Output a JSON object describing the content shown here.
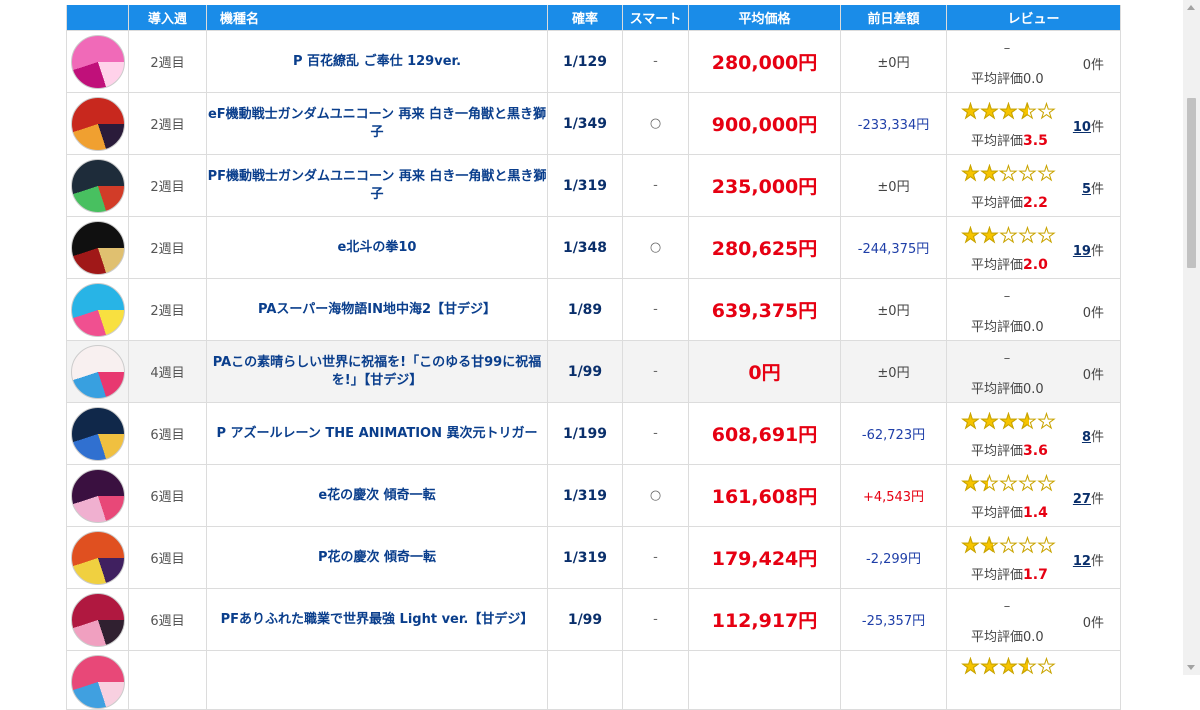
{
  "header": {
    "week": "導入週",
    "name": "機種名",
    "prob": "確率",
    "smart": "スマート",
    "avg_price": "平均価格",
    "diff": "前日差額",
    "review": "レビュー"
  },
  "unit_count": "件",
  "avg_label": "平均評価",
  "rows": [
    {
      "thumb": [
        "#f06ab8",
        "#ffd2ea",
        "#c0107a"
      ],
      "week": "2週目",
      "name": "P 百花繚乱 ご奉仕 129ver.",
      "prob": "1/129",
      "smart": "-",
      "price": "280,000円",
      "diff": "±0円",
      "diff_sign": "zero",
      "has_rating": false,
      "no_rating_mark": "–",
      "avg_value": "0.0",
      "count": "0",
      "stars": 0
    },
    {
      "thumb": [
        "#c8281e",
        "#2a1b3a",
        "#f0a030"
      ],
      "week": "2週目",
      "name": "eF機動戦士ガンダムユニコーン 再来 白き一角獣と黒き獅子",
      "prob": "1/349",
      "smart": "○",
      "price": "900,000円",
      "diff": "-233,334円",
      "diff_sign": "neg",
      "has_rating": true,
      "avg_value": "3.5",
      "count": "10",
      "stars": 3.5
    },
    {
      "thumb": [
        "#1e2c3a",
        "#d23c28",
        "#48c060"
      ],
      "week": "2週目",
      "name": "PF機動戦士ガンダムユニコーン 再来 白き一角獣と黒き獅子",
      "prob": "1/319",
      "smart": "-",
      "price": "235,000円",
      "diff": "±0円",
      "diff_sign": "zero",
      "has_rating": true,
      "avg_value": "2.2",
      "count": "5",
      "stars": 2.2
    },
    {
      "thumb": [
        "#101010",
        "#e0c070",
        "#a01818"
      ],
      "week": "2週目",
      "name": "e北斗の拳10",
      "prob": "1/348",
      "smart": "○",
      "price": "280,625円",
      "diff": "-244,375円",
      "diff_sign": "neg",
      "has_rating": true,
      "avg_value": "2.0",
      "count": "19",
      "stars": 2.0
    },
    {
      "thumb": [
        "#28b4e6",
        "#f8e040",
        "#f05090"
      ],
      "week": "2週目",
      "name": "PAスーパー海物語IN地中海2【甘デジ】",
      "prob": "1/89",
      "smart": "-",
      "price": "639,375円",
      "diff": "±0円",
      "diff_sign": "zero",
      "has_rating": false,
      "no_rating_mark": "–",
      "avg_value": "0.0",
      "count": "0",
      "stars": 0
    },
    {
      "thumb": [
        "#f8f0f0",
        "#e83870",
        "#38a0e0"
      ],
      "week": "4週目",
      "name": "PAこの素晴らしい世界に祝福を!「このゆる甘99に祝福を!」【甘デジ】",
      "prob": "1/99",
      "smart": "-",
      "price": "0円",
      "diff": "±0円",
      "diff_sign": "zero",
      "has_rating": false,
      "no_rating_mark": "–",
      "avg_value": "0.0",
      "count": "0",
      "stars": 0
    },
    {
      "thumb": [
        "#10284a",
        "#f0c040",
        "#3070d0"
      ],
      "week": "6週目",
      "name": "P アズールレーン THE ANIMATION 異次元トリガー",
      "prob": "1/199",
      "smart": "-",
      "price": "608,691円",
      "diff": "-62,723円",
      "diff_sign": "neg",
      "has_rating": true,
      "avg_value": "3.6",
      "count": "8",
      "stars": 3.6
    },
    {
      "thumb": [
        "#3a1040",
        "#e84878",
        "#f0b0d0"
      ],
      "week": "6週目",
      "name": "e花の慶次 傾奇一転",
      "prob": "1/319",
      "smart": "○",
      "price": "161,608円",
      "diff": "+4,543円",
      "diff_sign": "pos",
      "has_rating": true,
      "avg_value": "1.4",
      "count": "27",
      "stars": 1.4
    },
    {
      "thumb": [
        "#e05020",
        "#402060",
        "#f0d040"
      ],
      "week": "6週目",
      "name": "P花の慶次 傾奇一転",
      "prob": "1/319",
      "smart": "-",
      "price": "179,424円",
      "diff": "-2,299円",
      "diff_sign": "neg",
      "has_rating": true,
      "avg_value": "1.7",
      "count": "12",
      "stars": 1.7
    },
    {
      "thumb": [
        "#b01840",
        "#302030",
        "#f0a0c0"
      ],
      "week": "6週目",
      "name": "PFありふれた職業で世界最強 Light ver.【甘デジ】",
      "prob": "1/99",
      "smart": "-",
      "price": "112,917円",
      "diff": "-25,357円",
      "diff_sign": "neg",
      "has_rating": false,
      "no_rating_mark": "–",
      "avg_value": "0.0",
      "count": "0",
      "stars": 0
    }
  ],
  "cut_row": {
    "thumb": [
      "#e84878",
      "#f8d0e0",
      "#40a0e0"
    ],
    "stars": 3.5
  },
  "colors": {
    "header_bg": "#1a8ce8",
    "price_red": "#e60012",
    "name_blue": "#0a3e8c",
    "negative_blue": "#1f3fa8",
    "star_gold": "#f6c400"
  }
}
